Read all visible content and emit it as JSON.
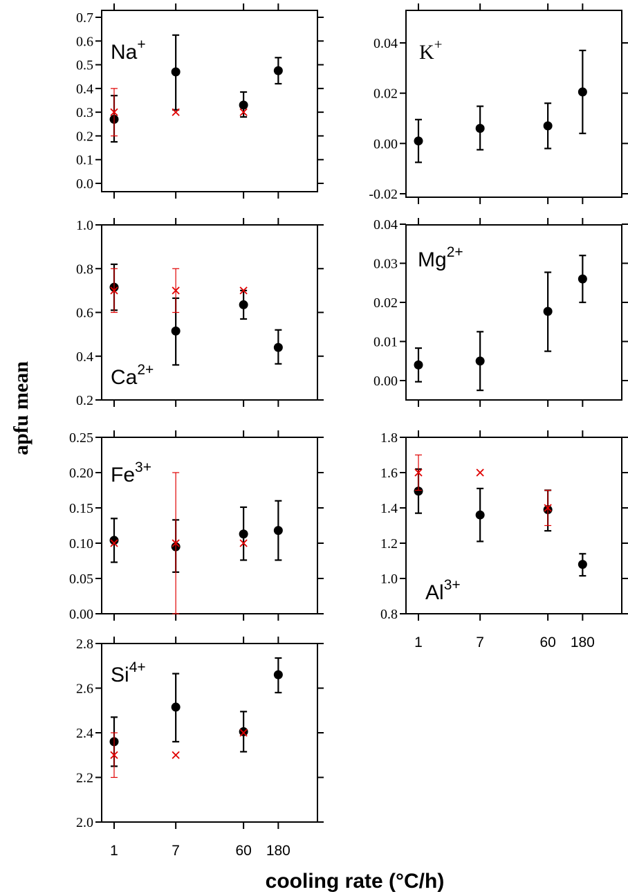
{
  "figure": {
    "ylabel": "apfu mean",
    "xlabel": "cooling rate (°C/h)",
    "x_ticks": [
      "1",
      "7",
      "60",
      "180"
    ]
  },
  "colors": {
    "measured": "#000000",
    "reference": "#e00000"
  },
  "chart_data": [
    {
      "type": "scatter",
      "label": "Na",
      "charge": "+",
      "categories": [
        "1",
        "7",
        "60",
        "180"
      ],
      "ylim": [
        -0.02,
        0.7
      ],
      "yticks": [
        "0.0",
        "0.1",
        "0.2",
        "0.3",
        "0.4",
        "0.5",
        "0.6",
        "0.7"
      ],
      "series": [
        {
          "values": [
            0.27,
            0.47,
            0.33,
            0.475
          ],
          "err_low": [
            0.175,
            0.31,
            0.28,
            0.42
          ],
          "err_high": [
            0.37,
            0.625,
            0.385,
            0.53
          ]
        },
        {
          "values": [
            0.3,
            0.3,
            0.3,
            null
          ],
          "err_low": [
            0.2,
            null,
            null,
            null
          ],
          "err_high": [
            0.4,
            null,
            null,
            null
          ]
        }
      ]
    },
    {
      "type": "scatter",
      "label": "K",
      "charge": "+",
      "categories": [
        "1",
        "7",
        "60",
        "180"
      ],
      "ylim": [
        -0.02,
        0.04
      ],
      "yticks": [
        "-0.02",
        "0.00",
        "0.02",
        "0.04"
      ],
      "series": [
        {
          "values": [
            0.001,
            0.006,
            0.007,
            0.0205
          ],
          "err_low": [
            -0.0075,
            -0.0025,
            -0.002,
            0.004
          ],
          "err_high": [
            0.0095,
            0.0148,
            0.016,
            0.037
          ]
        }
      ]
    },
    {
      "type": "scatter",
      "label": "Ca",
      "charge": "2+",
      "categories": [
        "1",
        "7",
        "60",
        "180"
      ],
      "ylim": [
        0.2,
        1.0
      ],
      "yticks": [
        "0.2",
        "0.4",
        "0.6",
        "0.8",
        "1.0"
      ],
      "series": [
        {
          "values": [
            0.715,
            0.515,
            0.635,
            0.44
          ],
          "err_low": [
            0.61,
            0.36,
            0.57,
            0.365
          ],
          "err_high": [
            0.82,
            0.665,
            0.7,
            0.52
          ]
        },
        {
          "values": [
            0.7,
            0.7,
            0.7,
            null
          ],
          "err_low": [
            0.6,
            0.6,
            null,
            null
          ],
          "err_high": [
            0.8,
            0.8,
            null,
            null
          ]
        }
      ]
    },
    {
      "type": "scatter",
      "label": "Mg",
      "charge": "2+",
      "categories": [
        "1",
        "7",
        "60",
        "180"
      ],
      "ylim": [
        -0.005,
        0.04
      ],
      "yticks": [
        "0.00",
        "0.01",
        "0.02",
        "0.03",
        "0.04"
      ],
      "series": [
        {
          "values": [
            0.004,
            0.005,
            0.0177,
            0.026
          ],
          "err_low": [
            -0.0003,
            -0.0025,
            0.0075,
            0.02
          ],
          "err_high": [
            0.0083,
            0.0125,
            0.0277,
            0.032
          ]
        }
      ]
    },
    {
      "type": "scatter",
      "label": "Fe",
      "charge": "3+",
      "categories": [
        "1",
        "7",
        "60",
        "180"
      ],
      "ylim": [
        0.0,
        0.25
      ],
      "yticks": [
        "0.00",
        "0.05",
        "0.10",
        "0.15",
        "0.20",
        "0.25"
      ],
      "series": [
        {
          "values": [
            0.104,
            0.095,
            0.113,
            0.118
          ],
          "err_low": [
            0.073,
            0.059,
            0.076,
            0.076
          ],
          "err_high": [
            0.135,
            0.133,
            0.151,
            0.16
          ]
        },
        {
          "values": [
            0.1,
            0.1,
            0.1,
            null
          ],
          "err_low": [
            null,
            0.0,
            null,
            null
          ],
          "err_high": [
            null,
            0.2,
            null,
            null
          ]
        }
      ]
    },
    {
      "type": "scatter",
      "label": "Al",
      "charge": "3+",
      "categories": [
        "1",
        "7",
        "60",
        "180"
      ],
      "ylim": [
        0.8,
        1.8
      ],
      "yticks": [
        "0.8",
        "1.0",
        "1.2",
        "1.4",
        "1.6",
        "1.8"
      ],
      "series": [
        {
          "values": [
            1.495,
            1.36,
            1.39,
            1.08
          ],
          "err_low": [
            1.37,
            1.21,
            1.27,
            1.015
          ],
          "err_high": [
            1.62,
            1.51,
            1.5,
            1.14
          ]
        },
        {
          "values": [
            1.6,
            1.6,
            1.4,
            null
          ],
          "err_low": [
            1.5,
            null,
            1.3,
            null
          ],
          "err_high": [
            1.7,
            null,
            1.5,
            null
          ]
        }
      ]
    },
    {
      "type": "scatter",
      "label": "Si",
      "charge": "4+",
      "categories": [
        "1",
        "7",
        "60",
        "180"
      ],
      "ylim": [
        2.0,
        2.8
      ],
      "yticks": [
        "2.0",
        "2.2",
        "2.4",
        "2.6",
        "2.8"
      ],
      "series": [
        {
          "values": [
            2.36,
            2.515,
            2.405,
            2.66
          ],
          "err_low": [
            2.25,
            2.36,
            2.315,
            2.58
          ],
          "err_high": [
            2.47,
            2.665,
            2.495,
            2.735
          ]
        },
        {
          "values": [
            2.3,
            2.3,
            2.4,
            null
          ],
          "err_low": [
            2.2,
            null,
            null,
            null
          ],
          "err_high": [
            2.4,
            null,
            null,
            null
          ]
        }
      ]
    }
  ]
}
